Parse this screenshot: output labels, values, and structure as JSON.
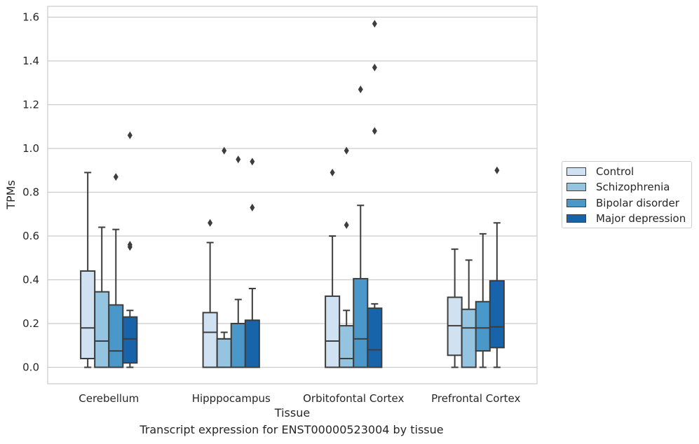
{
  "caption": "Transcript expression for ENST00000523004 by tissue",
  "chart_data": {
    "type": "boxplot",
    "xlabel": "Tissue",
    "ylabel": "TPMs",
    "ylim": [
      -0.08,
      1.65
    ],
    "yticks": [
      0.0,
      0.2,
      0.4,
      0.6,
      0.8,
      1.0,
      1.2,
      1.4,
      1.6
    ],
    "ytick_labels": [
      "0.0",
      "0.2",
      "0.4",
      "0.6",
      "0.8",
      "1.0",
      "1.2",
      "1.4",
      "1.6"
    ],
    "grid": "horizontal",
    "legend_position": "right",
    "categories": [
      "Cerebellum",
      "Hipppocampus",
      "Orbitofontal Cortex",
      "Prefrontal Cortex"
    ],
    "series": [
      {
        "name": "Control",
        "color": "#d0e1f2",
        "boxes": [
          {
            "whislo": 0.0,
            "q1": 0.04,
            "med": 0.18,
            "q3": 0.44,
            "whishi": 0.89,
            "fliers": []
          },
          {
            "whislo": 0.0,
            "q1": 0.0,
            "med": 0.16,
            "q3": 0.25,
            "whishi": 0.57,
            "fliers": [
              0.66
            ]
          },
          {
            "whislo": 0.0,
            "q1": 0.0,
            "med": 0.12,
            "q3": 0.325,
            "whishi": 0.6,
            "fliers": [
              0.89
            ]
          },
          {
            "whislo": 0.0,
            "q1": 0.055,
            "med": 0.19,
            "q3": 0.32,
            "whishi": 0.54,
            "fliers": []
          }
        ]
      },
      {
        "name": "Schizophrenia",
        "color": "#94c4df",
        "boxes": [
          {
            "whislo": 0.0,
            "q1": 0.0,
            "med": 0.12,
            "q3": 0.345,
            "whishi": 0.64,
            "fliers": []
          },
          {
            "whislo": 0.0,
            "q1": 0.0,
            "med": 0.13,
            "q3": 0.13,
            "whishi": 0.16,
            "fliers": [
              0.99
            ]
          },
          {
            "whislo": 0.0,
            "q1": 0.0,
            "med": 0.04,
            "q3": 0.19,
            "whishi": 0.26,
            "fliers": [
              0.65,
              0.99
            ]
          },
          {
            "whislo": 0.0,
            "q1": 0.0,
            "med": 0.18,
            "q3": 0.265,
            "whishi": 0.49,
            "fliers": []
          }
        ]
      },
      {
        "name": "Bipolar disorder",
        "color": "#4a98c9",
        "boxes": [
          {
            "whislo": 0.0,
            "q1": 0.0,
            "med": 0.075,
            "q3": 0.285,
            "whishi": 0.63,
            "fliers": [
              0.87
            ]
          },
          {
            "whislo": 0.0,
            "q1": 0.0,
            "med": 0.2,
            "q3": 0.2,
            "whishi": 0.31,
            "fliers": [
              0.95
            ]
          },
          {
            "whislo": 0.0,
            "q1": 0.0,
            "med": 0.13,
            "q3": 0.405,
            "whishi": 0.74,
            "fliers": [
              1.27
            ]
          },
          {
            "whislo": 0.0,
            "q1": 0.075,
            "med": 0.18,
            "q3": 0.3,
            "whishi": 0.61,
            "fliers": []
          }
        ]
      },
      {
        "name": "Major depression",
        "color": "#1764ab",
        "boxes": [
          {
            "whislo": 0.0,
            "q1": 0.02,
            "med": 0.13,
            "q3": 0.23,
            "whishi": 0.26,
            "fliers": [
              0.55,
              0.56,
              1.06
            ]
          },
          {
            "whislo": 0.0,
            "q1": 0.0,
            "med": 0.215,
            "q3": 0.215,
            "whishi": 0.36,
            "fliers": [
              0.73,
              0.94
            ]
          },
          {
            "whislo": 0.0,
            "q1": 0.0,
            "med": 0.08,
            "q3": 0.27,
            "whishi": 0.29,
            "fliers": [
              1.08,
              1.37,
              1.57
            ]
          },
          {
            "whislo": 0.0,
            "q1": 0.09,
            "med": 0.185,
            "q3": 0.395,
            "whishi": 0.66,
            "fliers": [
              0.9
            ]
          }
        ]
      }
    ]
  }
}
